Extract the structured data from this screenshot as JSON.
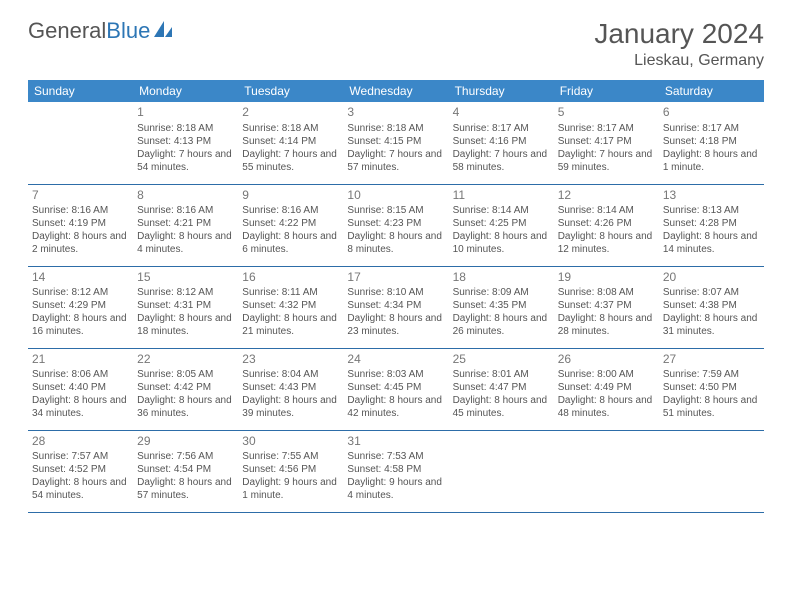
{
  "logo": {
    "part1": "General",
    "part2": "Blue"
  },
  "title": "January 2024",
  "location": "Lieskau, Germany",
  "colors": {
    "header_bg": "#3b87c8",
    "header_text": "#ffffff",
    "row_border": "#2d6da8",
    "text": "#555555",
    "logo_gray": "#555555",
    "logo_blue": "#2d76b5",
    "background": "#ffffff"
  },
  "weekdays": [
    "Sunday",
    "Monday",
    "Tuesday",
    "Wednesday",
    "Thursday",
    "Friday",
    "Saturday"
  ],
  "weeks": [
    [
      {
        "n": "",
        "sr": "",
        "ss": "",
        "dl": ""
      },
      {
        "n": "1",
        "sr": "Sunrise: 8:18 AM",
        "ss": "Sunset: 4:13 PM",
        "dl": "Daylight: 7 hours and 54 minutes."
      },
      {
        "n": "2",
        "sr": "Sunrise: 8:18 AM",
        "ss": "Sunset: 4:14 PM",
        "dl": "Daylight: 7 hours and 55 minutes."
      },
      {
        "n": "3",
        "sr": "Sunrise: 8:18 AM",
        "ss": "Sunset: 4:15 PM",
        "dl": "Daylight: 7 hours and 57 minutes."
      },
      {
        "n": "4",
        "sr": "Sunrise: 8:17 AM",
        "ss": "Sunset: 4:16 PM",
        "dl": "Daylight: 7 hours and 58 minutes."
      },
      {
        "n": "5",
        "sr": "Sunrise: 8:17 AM",
        "ss": "Sunset: 4:17 PM",
        "dl": "Daylight: 7 hours and 59 minutes."
      },
      {
        "n": "6",
        "sr": "Sunrise: 8:17 AM",
        "ss": "Sunset: 4:18 PM",
        "dl": "Daylight: 8 hours and 1 minute."
      }
    ],
    [
      {
        "n": "7",
        "sr": "Sunrise: 8:16 AM",
        "ss": "Sunset: 4:19 PM",
        "dl": "Daylight: 8 hours and 2 minutes."
      },
      {
        "n": "8",
        "sr": "Sunrise: 8:16 AM",
        "ss": "Sunset: 4:21 PM",
        "dl": "Daylight: 8 hours and 4 minutes."
      },
      {
        "n": "9",
        "sr": "Sunrise: 8:16 AM",
        "ss": "Sunset: 4:22 PM",
        "dl": "Daylight: 8 hours and 6 minutes."
      },
      {
        "n": "10",
        "sr": "Sunrise: 8:15 AM",
        "ss": "Sunset: 4:23 PM",
        "dl": "Daylight: 8 hours and 8 minutes."
      },
      {
        "n": "11",
        "sr": "Sunrise: 8:14 AM",
        "ss": "Sunset: 4:25 PM",
        "dl": "Daylight: 8 hours and 10 minutes."
      },
      {
        "n": "12",
        "sr": "Sunrise: 8:14 AM",
        "ss": "Sunset: 4:26 PM",
        "dl": "Daylight: 8 hours and 12 minutes."
      },
      {
        "n": "13",
        "sr": "Sunrise: 8:13 AM",
        "ss": "Sunset: 4:28 PM",
        "dl": "Daylight: 8 hours and 14 minutes."
      }
    ],
    [
      {
        "n": "14",
        "sr": "Sunrise: 8:12 AM",
        "ss": "Sunset: 4:29 PM",
        "dl": "Daylight: 8 hours and 16 minutes."
      },
      {
        "n": "15",
        "sr": "Sunrise: 8:12 AM",
        "ss": "Sunset: 4:31 PM",
        "dl": "Daylight: 8 hours and 18 minutes."
      },
      {
        "n": "16",
        "sr": "Sunrise: 8:11 AM",
        "ss": "Sunset: 4:32 PM",
        "dl": "Daylight: 8 hours and 21 minutes."
      },
      {
        "n": "17",
        "sr": "Sunrise: 8:10 AM",
        "ss": "Sunset: 4:34 PM",
        "dl": "Daylight: 8 hours and 23 minutes."
      },
      {
        "n": "18",
        "sr": "Sunrise: 8:09 AM",
        "ss": "Sunset: 4:35 PM",
        "dl": "Daylight: 8 hours and 26 minutes."
      },
      {
        "n": "19",
        "sr": "Sunrise: 8:08 AM",
        "ss": "Sunset: 4:37 PM",
        "dl": "Daylight: 8 hours and 28 minutes."
      },
      {
        "n": "20",
        "sr": "Sunrise: 8:07 AM",
        "ss": "Sunset: 4:38 PM",
        "dl": "Daylight: 8 hours and 31 minutes."
      }
    ],
    [
      {
        "n": "21",
        "sr": "Sunrise: 8:06 AM",
        "ss": "Sunset: 4:40 PM",
        "dl": "Daylight: 8 hours and 34 minutes."
      },
      {
        "n": "22",
        "sr": "Sunrise: 8:05 AM",
        "ss": "Sunset: 4:42 PM",
        "dl": "Daylight: 8 hours and 36 minutes."
      },
      {
        "n": "23",
        "sr": "Sunrise: 8:04 AM",
        "ss": "Sunset: 4:43 PM",
        "dl": "Daylight: 8 hours and 39 minutes."
      },
      {
        "n": "24",
        "sr": "Sunrise: 8:03 AM",
        "ss": "Sunset: 4:45 PM",
        "dl": "Daylight: 8 hours and 42 minutes."
      },
      {
        "n": "25",
        "sr": "Sunrise: 8:01 AM",
        "ss": "Sunset: 4:47 PM",
        "dl": "Daylight: 8 hours and 45 minutes."
      },
      {
        "n": "26",
        "sr": "Sunrise: 8:00 AM",
        "ss": "Sunset: 4:49 PM",
        "dl": "Daylight: 8 hours and 48 minutes."
      },
      {
        "n": "27",
        "sr": "Sunrise: 7:59 AM",
        "ss": "Sunset: 4:50 PM",
        "dl": "Daylight: 8 hours and 51 minutes."
      }
    ],
    [
      {
        "n": "28",
        "sr": "Sunrise: 7:57 AM",
        "ss": "Sunset: 4:52 PM",
        "dl": "Daylight: 8 hours and 54 minutes."
      },
      {
        "n": "29",
        "sr": "Sunrise: 7:56 AM",
        "ss": "Sunset: 4:54 PM",
        "dl": "Daylight: 8 hours and 57 minutes."
      },
      {
        "n": "30",
        "sr": "Sunrise: 7:55 AM",
        "ss": "Sunset: 4:56 PM",
        "dl": "Daylight: 9 hours and 1 minute."
      },
      {
        "n": "31",
        "sr": "Sunrise: 7:53 AM",
        "ss": "Sunset: 4:58 PM",
        "dl": "Daylight: 9 hours and 4 minutes."
      },
      {
        "n": "",
        "sr": "",
        "ss": "",
        "dl": ""
      },
      {
        "n": "",
        "sr": "",
        "ss": "",
        "dl": ""
      },
      {
        "n": "",
        "sr": "",
        "ss": "",
        "dl": ""
      }
    ]
  ]
}
